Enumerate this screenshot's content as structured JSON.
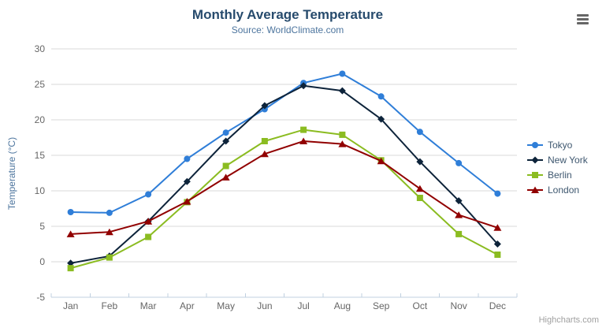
{
  "page": {
    "credits": "Highcharts.com"
  },
  "icons": {
    "menu": "hamburger-icon"
  },
  "chart_data": {
    "type": "line",
    "title": "Monthly Average Temperature",
    "subtitle": "Source: WorldClimate.com",
    "xlabel": "",
    "ylabel": "Temperature (°C)",
    "categories": [
      "Jan",
      "Feb",
      "Mar",
      "Apr",
      "May",
      "Jun",
      "Jul",
      "Aug",
      "Sep",
      "Oct",
      "Nov",
      "Dec"
    ],
    "ylim": [
      -5,
      30
    ],
    "yticks": [
      -5,
      0,
      5,
      10,
      15,
      20,
      25,
      30
    ],
    "grid": "horizontal",
    "legend_position": "right",
    "axis_line_color": "#c0d0e0",
    "grid_color": "#d8d8d8",
    "label_color": "#666666",
    "series": [
      {
        "name": "Tokyo",
        "color": "#2f7ed8",
        "marker": "circle",
        "values": [
          7.0,
          6.9,
          9.5,
          14.5,
          18.2,
          21.5,
          25.2,
          26.5,
          23.3,
          18.3,
          13.9,
          9.6
        ]
      },
      {
        "name": "New York",
        "color": "#0d233a",
        "marker": "diamond",
        "values": [
          -0.2,
          0.8,
          5.7,
          11.3,
          17.0,
          22.0,
          24.8,
          24.1,
          20.1,
          14.1,
          8.6,
          2.5
        ]
      },
      {
        "name": "Berlin",
        "color": "#8bbc21",
        "marker": "square",
        "values": [
          -0.9,
          0.6,
          3.5,
          8.4,
          13.5,
          17.0,
          18.6,
          17.9,
          14.3,
          9.0,
          3.9,
          1.0
        ]
      },
      {
        "name": "London",
        "color": "#910000",
        "marker": "triangle",
        "values": [
          3.9,
          4.2,
          5.7,
          8.5,
          11.9,
          15.2,
          17.0,
          16.6,
          14.2,
          10.3,
          6.6,
          4.8
        ]
      }
    ]
  }
}
